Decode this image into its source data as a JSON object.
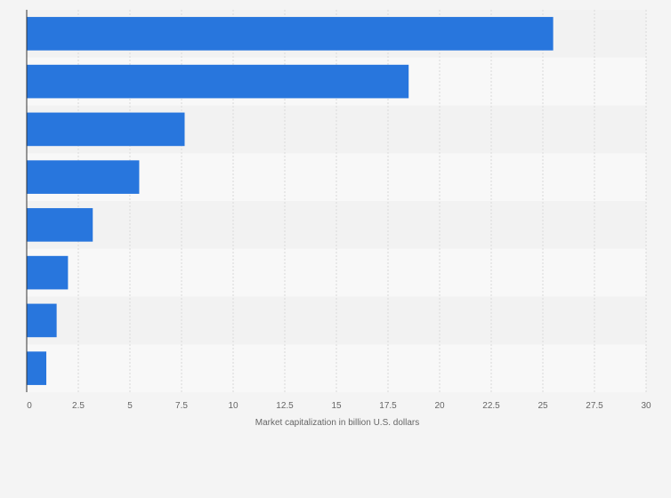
{
  "chart_data": {
    "type": "bar",
    "orientation": "horizontal",
    "categories": [
      "",
      "",
      "",
      "",
      "",
      "",
      "",
      ""
    ],
    "values": [
      25.5,
      18.5,
      7.65,
      5.45,
      3.2,
      2.0,
      1.45,
      0.95
    ],
    "title": "",
    "xlabel": "Market capitalization in billion U.S. dollars",
    "ylabel": "",
    "xlim": [
      0,
      30
    ],
    "xticks": [
      "0",
      "2.5",
      "5",
      "7.5",
      "10",
      "12.5",
      "15",
      "17.5",
      "20",
      "22.5",
      "25",
      "27.5",
      "30"
    ],
    "grid": true,
    "legend": "none",
    "bar_color": "#2876dd",
    "band_colors": [
      "#f2f2f2",
      "#f8f8f8"
    ],
    "grid_color": "#d9d9d9",
    "axis_color": "#333333"
  }
}
